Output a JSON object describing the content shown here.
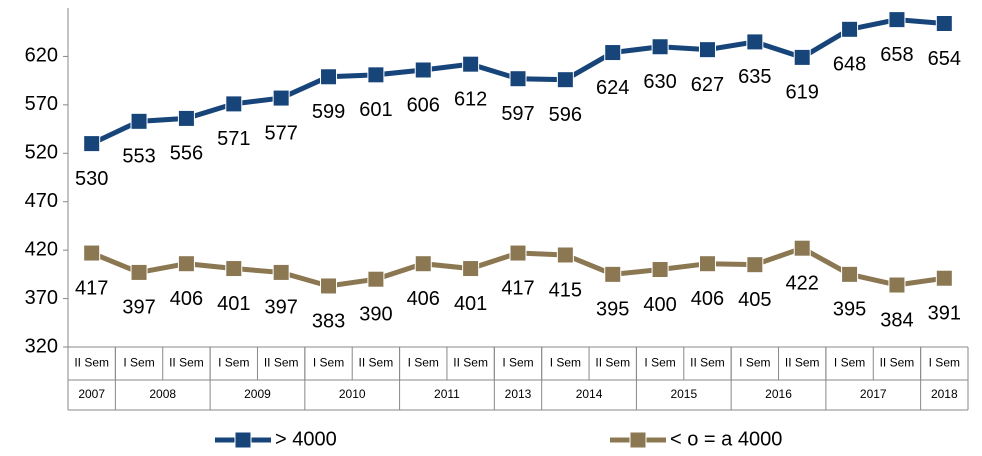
{
  "chart_data": {
    "type": "line",
    "categories": [
      "II Sem",
      "I Sem",
      "II Sem",
      "I Sem",
      "II Sem",
      "I Sem",
      "II Sem",
      "I Sem",
      "II Sem",
      "I Sem",
      "I Sem",
      "II Sem",
      "I Sem",
      "II Sem",
      "I Sem",
      "II Sem",
      "I Sem",
      "II Sem",
      "I Sem"
    ],
    "category_groups": [
      "2007",
      "2008",
      "2008",
      "2009",
      "2009",
      "2010",
      "2010",
      "2011",
      "2011",
      "2013",
      "2014",
      "2014",
      "2015",
      "2015",
      "2016",
      "2016",
      "2017",
      "2017",
      "2018"
    ],
    "series": [
      {
        "name": "> 4000",
        "color": "#17457a",
        "values": [
          530,
          553,
          556,
          571,
          577,
          599,
          601,
          606,
          612,
          597,
          596,
          624,
          630,
          627,
          635,
          619,
          648,
          658,
          654
        ]
      },
      {
        "name": "< o = a 4000",
        "color": "#8b7852",
        "values": [
          417,
          397,
          406,
          401,
          397,
          383,
          390,
          406,
          401,
          417,
          415,
          395,
          400,
          406,
          405,
          422,
          395,
          384,
          391
        ]
      }
    ],
    "ylim": [
      320,
      670
    ],
    "yticks": [
      320,
      370,
      420,
      470,
      520,
      570,
      620
    ],
    "grid": false
  }
}
